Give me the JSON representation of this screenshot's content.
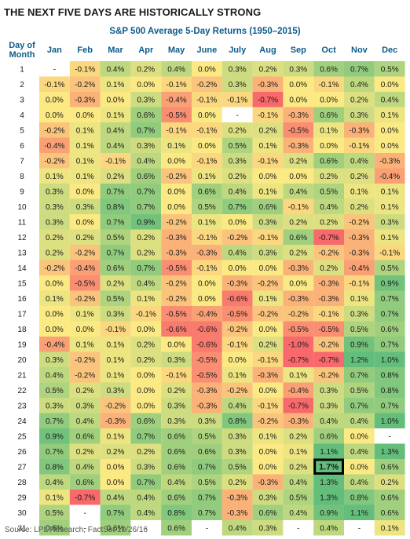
{
  "title": "THE NEXT FIVE DAYS ARE HISTORICALLY STRONG",
  "subtitle": "S&P 500 Average 5-Day Returns (1950–2015)",
  "source": "Source: LPL Research, FactSet   10/26/16",
  "chart_data": {
    "type": "heatmap",
    "row_header": "Day of Month",
    "columns": [
      "Jan",
      "Feb",
      "Mar",
      "Apr",
      "May",
      "June",
      "July",
      "Aug",
      "Sep",
      "Oct",
      "Nov",
      "Dec"
    ],
    "rows": [
      "1",
      "2",
      "3",
      "4",
      "5",
      "6",
      "7",
      "8",
      "9",
      "10",
      "11",
      "12",
      "13",
      "14",
      "15",
      "16",
      "17",
      "18",
      "19",
      "20",
      "21",
      "22",
      "23",
      "24",
      "25",
      "26",
      "27",
      "28",
      "29",
      "30",
      "31"
    ],
    "values": [
      [
        null,
        -0.1,
        0.4,
        0.2,
        0.4,
        0.0,
        0.3,
        0.2,
        0.3,
        0.6,
        0.7,
        0.5
      ],
      [
        -0.1,
        -0.2,
        0.1,
        0.0,
        -0.1,
        -0.2,
        0.3,
        -0.3,
        0.0,
        -0.1,
        0.4,
        0.0
      ],
      [
        0.0,
        -0.3,
        0.0,
        0.3,
        -0.4,
        -0.1,
        -0.1,
        -0.7,
        0.0,
        0.0,
        0.2,
        0.4
      ],
      [
        0.0,
        0.0,
        0.1,
        0.6,
        -0.5,
        0.0,
        null,
        -0.1,
        -0.3,
        0.6,
        0.3,
        0.1
      ],
      [
        -0.2,
        0.1,
        0.4,
        0.7,
        -0.1,
        -0.1,
        0.2,
        0.2,
        -0.5,
        0.1,
        -0.3,
        0.0
      ],
      [
        -0.4,
        0.1,
        0.4,
        0.3,
        0.1,
        0.0,
        0.5,
        0.1,
        -0.3,
        0.0,
        -0.1,
        0.0
      ],
      [
        -0.2,
        0.1,
        -0.1,
        0.4,
        0.0,
        -0.1,
        0.3,
        -0.1,
        0.2,
        0.6,
        0.4,
        -0.3
      ],
      [
        0.1,
        0.1,
        0.2,
        0.6,
        -0.2,
        0.1,
        0.2,
        0.0,
        0.0,
        0.2,
        0.2,
        -0.4
      ],
      [
        0.3,
        0.0,
        0.7,
        0.7,
        0.0,
        0.6,
        0.4,
        0.1,
        0.4,
        0.5,
        0.1,
        0.1
      ],
      [
        0.3,
        0.3,
        0.8,
        0.7,
        0.0,
        0.5,
        0.7,
        0.6,
        -0.1,
        0.4,
        0.2,
        0.1
      ],
      [
        0.3,
        0.0,
        0.7,
        0.9,
        -0.2,
        0.1,
        0.0,
        0.3,
        0.2,
        0.2,
        -0.2,
        0.3
      ],
      [
        0.2,
        0.2,
        0.5,
        0.2,
        -0.3,
        -0.1,
        -0.2,
        -0.1,
        0.6,
        -0.7,
        -0.3,
        0.1
      ],
      [
        0.2,
        -0.2,
        0.7,
        0.2,
        -0.3,
        -0.3,
        0.4,
        0.3,
        0.2,
        -0.2,
        -0.3,
        -0.1
      ],
      [
        -0.2,
        -0.4,
        0.6,
        0.7,
        -0.5,
        -0.1,
        0.0,
        0.0,
        -0.3,
        0.2,
        -0.4,
        0.5
      ],
      [
        0.0,
        -0.5,
        0.2,
        0.4,
        -0.2,
        0.0,
        -0.3,
        -0.2,
        0.0,
        -0.3,
        -0.1,
        0.9
      ],
      [
        0.1,
        -0.2,
        0.5,
        0.1,
        -0.2,
        0.0,
        -0.6,
        0.1,
        -0.3,
        -0.3,
        0.1,
        0.7
      ],
      [
        0.0,
        0.1,
        0.3,
        -0.1,
        -0.5,
        -0.4,
        -0.5,
        -0.2,
        -0.2,
        -0.1,
        0.3,
        0.7
      ],
      [
        0.0,
        0.0,
        -0.1,
        0.0,
        -0.6,
        -0.6,
        -0.2,
        0.0,
        -0.5,
        -0.5,
        0.5,
        0.6
      ],
      [
        -0.4,
        0.1,
        0.1,
        0.2,
        0.0,
        -0.6,
        -0.1,
        0.2,
        -1.0,
        -0.2,
        0.9,
        0.7
      ],
      [
        0.3,
        -0.2,
        0.1,
        0.2,
        0.3,
        -0.5,
        0.0,
        -0.1,
        -0.7,
        -0.7,
        1.2,
        1.0
      ],
      [
        0.4,
        -0.2,
        0.1,
        0.0,
        -0.1,
        -0.5,
        0.1,
        -0.3,
        0.1,
        -0.2,
        0.7,
        0.8
      ],
      [
        0.5,
        0.2,
        0.3,
        0.0,
        0.2,
        -0.3,
        -0.2,
        0.0,
        -0.4,
        0.3,
        0.5,
        0.8
      ],
      [
        0.3,
        0.3,
        -0.2,
        0.0,
        0.3,
        -0.3,
        0.4,
        -0.1,
        -0.7,
        0.3,
        0.7,
        0.7
      ],
      [
        0.7,
        0.4,
        -0.3,
        0.6,
        0.3,
        0.3,
        0.8,
        -0.2,
        -0.3,
        0.4,
        0.4,
        1.0
      ],
      [
        0.9,
        0.6,
        0.1,
        0.7,
        0.6,
        0.5,
        0.3,
        0.1,
        0.2,
        0.6,
        0.0,
        null
      ],
      [
        0.7,
        0.2,
        0.2,
        0.2,
        0.6,
        0.6,
        0.3,
        0.0,
        0.1,
        1.1,
        0.4,
        1.3
      ],
      [
        0.8,
        0.4,
        0.0,
        0.3,
        0.6,
        0.7,
        0.5,
        0.0,
        0.2,
        1.7,
        0.0,
        0.6
      ],
      [
        0.4,
        0.6,
        0.0,
        0.7,
        0.4,
        0.5,
        0.2,
        -0.3,
        0.4,
        1.3,
        0.4,
        0.2
      ],
      [
        0.1,
        -0.7,
        0.4,
        0.4,
        0.6,
        0.7,
        -0.3,
        0.3,
        0.5,
        1.3,
        0.8,
        0.6
      ],
      [
        0.5,
        null,
        0.7,
        0.4,
        0.8,
        0.7,
        -0.3,
        0.6,
        0.4,
        0.9,
        1.1,
        0.6
      ],
      [
        0.6,
        null,
        0.6,
        null,
        0.6,
        null,
        0.4,
        0.3,
        null,
        0.4,
        null,
        0.1
      ]
    ],
    "missing_label": "-",
    "value_suffix": "%",
    "highlight": {
      "row": "27",
      "column": "Oct"
    },
    "colors": {
      "negative": "#f8696b",
      "neutral": "#fbe983",
      "positive": "#63be7b",
      "missing": "#ffffff",
      "highlight_border": "#000000"
    }
  }
}
